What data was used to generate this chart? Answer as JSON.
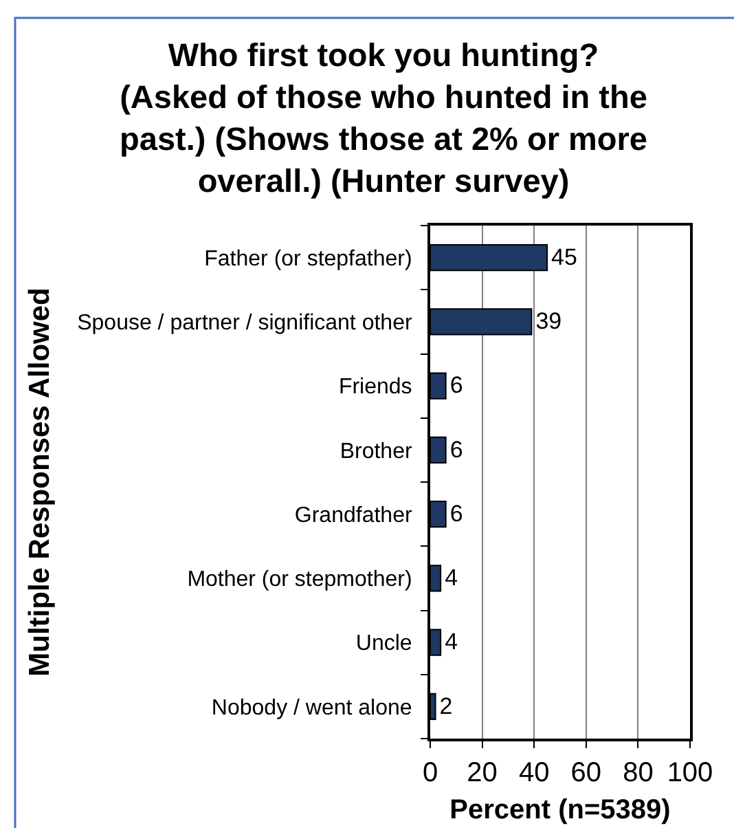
{
  "chart_data": {
    "type": "bar",
    "orientation": "horizontal",
    "title": "Who first took you hunting?\n(Asked of those who hunted in the\npast.) (Shows those at 2% or more\noverall.) (Hunter survey)",
    "xlabel": "Percent (n=5389)",
    "ylabel": "Multiple Responses Allowed",
    "categories": [
      "Father (or stepfather)",
      "Spouse / partner / significant other",
      "Friends",
      "Brother",
      "Grandfather",
      "Mother (or stepmother)",
      "Uncle",
      "Nobody / went alone"
    ],
    "values": [
      45,
      39,
      6,
      6,
      6,
      4,
      4,
      2
    ],
    "color": "#1f3864",
    "xlim": [
      0,
      100
    ],
    "xticks": [
      0,
      20,
      40,
      60,
      80,
      100
    ],
    "grid": "x",
    "data_labels": true
  }
}
